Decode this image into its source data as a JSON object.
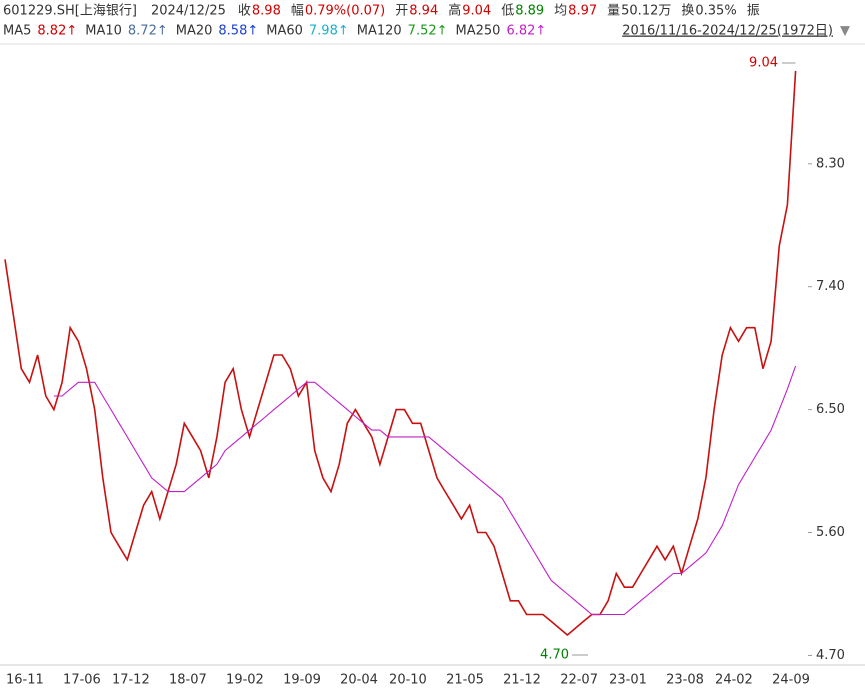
{
  "chart_data": {
    "type": "line",
    "symbol": "601229.SH[上海银行]",
    "date": "2024/12/25",
    "info": [
      {
        "label": "收",
        "value": "8.98",
        "color": "#d00000"
      },
      {
        "label": "幅",
        "value": "0.79%(0.07)",
        "color": "#d00000"
      },
      {
        "label": "开",
        "value": "8.94",
        "color": "#d00000"
      },
      {
        "label": "高",
        "value": "9.04",
        "color": "#d00000"
      },
      {
        "label": "低",
        "value": "8.89",
        "color": "#008000"
      },
      {
        "label": "均",
        "value": "8.97",
        "color": "#d00000"
      },
      {
        "label": "量",
        "value": "50.12万",
        "color": "#333333"
      },
      {
        "label": "换",
        "value": "0.35%",
        "color": "#333333"
      },
      {
        "label": "振",
        "value": "",
        "color": "#333333"
      }
    ],
    "ma_legend": [
      {
        "name": "MA5",
        "value": "8.82↑",
        "color": "#d00000"
      },
      {
        "name": "MA10",
        "value": "8.72↑",
        "color": "#4a6f9c"
      },
      {
        "name": "MA20",
        "value": "8.58↑",
        "color": "#1a3fcf"
      },
      {
        "name": "MA60",
        "value": "7.98↑",
        "color": "#18b0c8"
      },
      {
        "name": "MA120",
        "value": "7.52↑",
        "color": "#1a9a1a"
      },
      {
        "name": "MA250",
        "value": "6.82↑",
        "color": "#c020c8"
      }
    ],
    "range": "2016/11/16-2024/12/25(1972日)",
    "categories": [
      "16-11",
      null,
      null,
      null,
      null,
      null,
      null,
      "17-06",
      null,
      null,
      null,
      null,
      null,
      "17-12",
      null,
      null,
      null,
      null,
      null,
      null,
      "18-07",
      null,
      null,
      null,
      null,
      null,
      null,
      "19-02",
      null,
      null,
      null,
      null,
      null,
      null,
      "19-09",
      null,
      null,
      null,
      null,
      null,
      null,
      "20-04",
      null,
      null,
      null,
      null,
      null,
      "20-10",
      null,
      null,
      null,
      null,
      null,
      null,
      "21-05",
      null,
      null,
      null,
      null,
      null,
      null,
      "21-12",
      null,
      null,
      null,
      null,
      null,
      null,
      "22-07",
      null,
      null,
      null,
      null,
      null,
      "23-01",
      null,
      null,
      null,
      null,
      null,
      null,
      "23-08",
      null,
      null,
      null,
      null,
      null,
      "24-02",
      null,
      null,
      null,
      null,
      null,
      null,
      "24-09",
      null,
      null,
      null
    ],
    "series": [
      {
        "name": "收盘",
        "color": "#c81010",
        "values": [
          7.6,
          7.2,
          6.8,
          6.7,
          6.9,
          6.6,
          6.5,
          6.7,
          7.1,
          7.0,
          6.8,
          6.5,
          6.0,
          5.6,
          5.5,
          5.4,
          5.6,
          5.8,
          5.9,
          5.7,
          5.9,
          6.1,
          6.4,
          6.3,
          6.2,
          6.0,
          6.3,
          6.7,
          6.8,
          6.5,
          6.3,
          6.5,
          6.7,
          6.9,
          6.9,
          6.8,
          6.6,
          6.7,
          6.2,
          6.0,
          5.9,
          6.1,
          6.4,
          6.5,
          6.4,
          6.3,
          6.1,
          6.3,
          6.5,
          6.5,
          6.4,
          6.4,
          6.2,
          6.0,
          5.9,
          5.8,
          5.7,
          5.8,
          5.6,
          5.6,
          5.5,
          5.3,
          5.1,
          5.1,
          5.0,
          5.0,
          5.0,
          4.95,
          4.9,
          4.85,
          4.9,
          4.95,
          5.0,
          5.0,
          5.1,
          5.3,
          5.2,
          5.2,
          5.3,
          5.4,
          5.5,
          5.4,
          5.5,
          5.3,
          5.5,
          5.7,
          6.0,
          6.5,
          6.9,
          7.1,
          7.0,
          7.1,
          7.1,
          6.8,
          7.0,
          7.7,
          8.0,
          8.98
        ]
      },
      {
        "name": "MA250",
        "color": "#c020c8",
        "values": [
          null,
          null,
          null,
          null,
          null,
          null,
          6.6,
          6.6,
          6.65,
          6.7,
          6.7,
          6.7,
          6.6,
          6.5,
          6.4,
          6.3,
          6.2,
          6.1,
          6.0,
          5.95,
          5.9,
          5.9,
          5.9,
          5.95,
          6.0,
          6.05,
          6.1,
          6.2,
          6.25,
          6.3,
          6.35,
          6.4,
          6.45,
          6.5,
          6.55,
          6.6,
          6.65,
          6.7,
          6.7,
          6.65,
          6.6,
          6.55,
          6.5,
          6.45,
          6.4,
          6.35,
          6.35,
          6.3,
          6.3,
          6.3,
          6.3,
          6.3,
          6.3,
          6.25,
          6.2,
          6.15,
          6.1,
          6.05,
          6.0,
          5.95,
          5.9,
          5.85,
          5.75,
          5.65,
          5.55,
          5.45,
          5.35,
          5.25,
          5.2,
          5.15,
          5.1,
          5.05,
          5.0,
          5.0,
          5.0,
          5.0,
          5.0,
          5.05,
          5.1,
          5.15,
          5.2,
          5.25,
          5.3,
          5.3,
          5.35,
          5.4,
          5.45,
          5.55,
          5.65,
          5.8,
          5.95,
          6.05,
          6.15,
          6.25,
          6.35,
          6.5,
          6.65,
          6.82
        ]
      }
    ],
    "annotations": [
      {
        "text": "9.04"
      },
      {
        "text": "4.70"
      }
    ],
    "ylim": [
      4.63,
      9.17
    ],
    "yticks": [
      {
        "value": 4.7,
        "label": "4.70"
      },
      {
        "value": 5.6,
        "label": "5.60"
      },
      {
        "value": 6.5,
        "label": "6.50"
      },
      {
        "value": 7.4,
        "label": "7.40"
      },
      {
        "value": 8.3,
        "label": "8.30"
      }
    ]
  }
}
